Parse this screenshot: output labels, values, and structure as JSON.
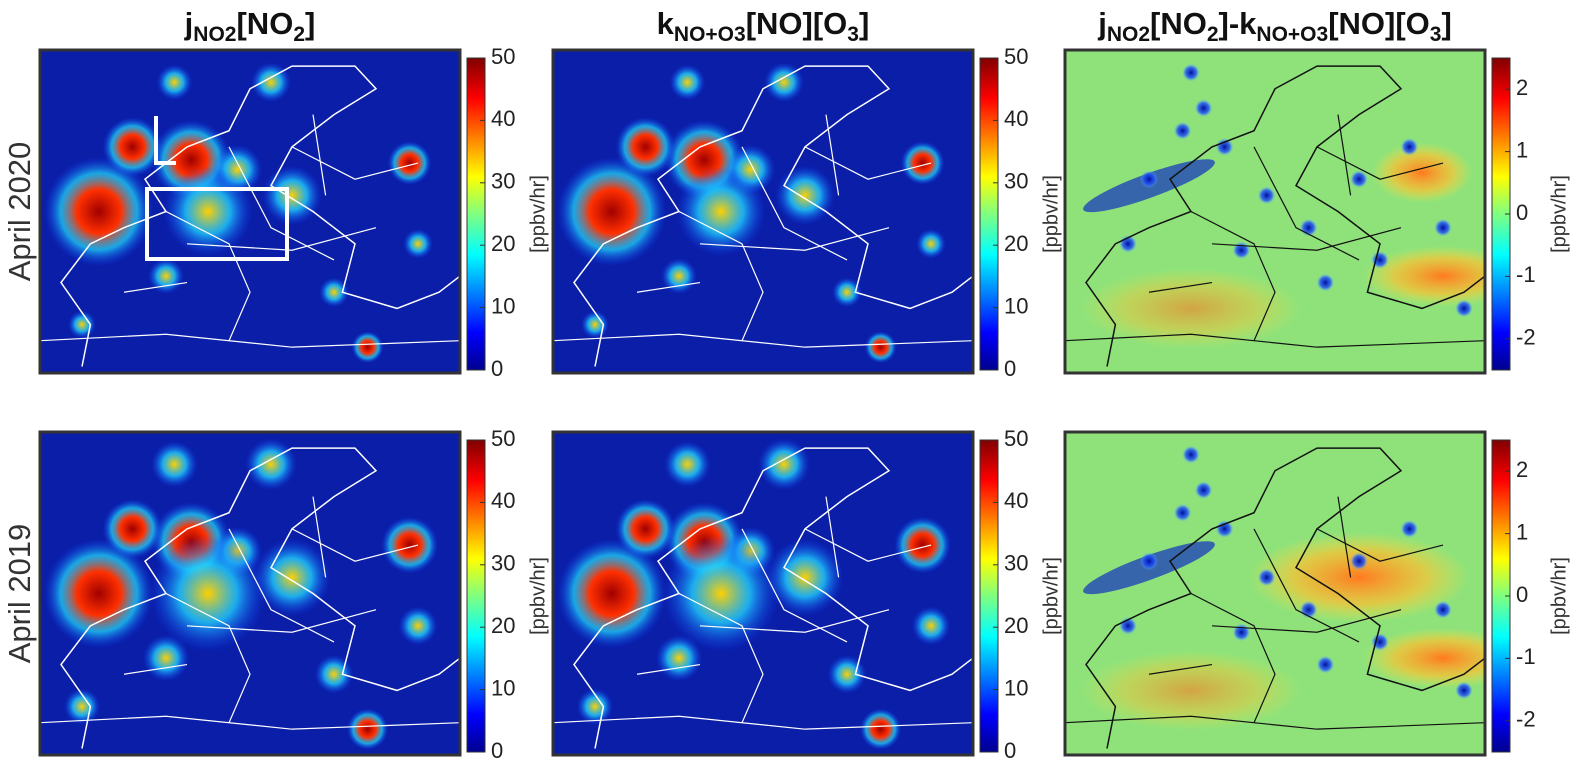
{
  "rows": [
    {
      "label": "April 2020"
    },
    {
      "label": "April 2019"
    }
  ],
  "columns": [
    {
      "title": [
        {
          "text": "j"
        },
        {
          "text": "NO2",
          "sub": true
        },
        {
          "text": "[NO"
        },
        {
          "text": "2",
          "sub": true
        },
        {
          "text": "]"
        }
      ],
      "colorbar": {
        "label": "[ppbv/hr]",
        "ylim": [
          0,
          50
        ],
        "yticks": [
          0,
          10,
          20,
          30,
          40,
          50
        ]
      }
    },
    {
      "title": [
        {
          "text": "k"
        },
        {
          "text": "NO+O3",
          "sub": true
        },
        {
          "text": "[NO][O"
        },
        {
          "text": "3",
          "sub": true
        },
        {
          "text": "]"
        }
      ],
      "colorbar": {
        "label": "[ppbv/hr]",
        "ylim": [
          0,
          50
        ],
        "yticks": [
          0,
          10,
          20,
          30,
          40,
          50
        ]
      }
    },
    {
      "title": [
        {
          "text": "j"
        },
        {
          "text": "NO2",
          "sub": true
        },
        {
          "text": "[NO"
        },
        {
          "text": "2",
          "sub": true
        },
        {
          "text": "]-k"
        },
        {
          "text": "NO+O3",
          "sub": true
        },
        {
          "text": "[NO][O"
        },
        {
          "text": "3",
          "sub": true
        },
        {
          "text": "]"
        }
      ],
      "colorbar": {
        "label": "[ppbv/hr]",
        "ylim": [
          -2.5,
          2.5
        ],
        "yticks": [
          -2,
          -1,
          0,
          1,
          2
        ]
      }
    }
  ]
}
